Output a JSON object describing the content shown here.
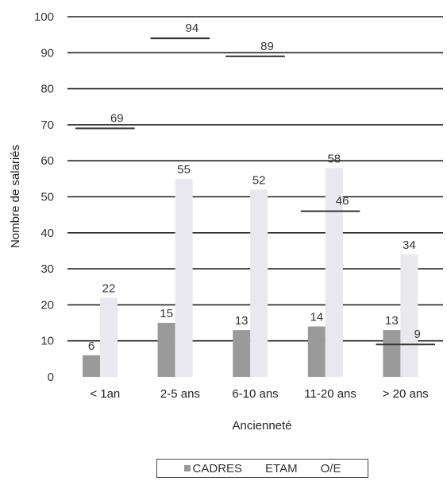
{
  "chart_data": {
    "type": "bar",
    "xlabel": "Ancienneté",
    "ylabel": "Nombre de salariés",
    "ylim": [
      0,
      100
    ],
    "yticks": [
      0,
      10,
      20,
      30,
      40,
      50,
      60,
      70,
      80,
      90,
      100
    ],
    "categories": [
      "< 1an",
      "2-5 ans",
      "6-10 ans",
      "11-20 ans",
      "> 20 ans"
    ],
    "grid": true,
    "legend_position": "bottom",
    "series": [
      {
        "name": "CADRES",
        "values": [
          6,
          15,
          13,
          14,
          13
        ],
        "color": "#9a9a9a"
      },
      {
        "name": "ETAM",
        "values": [
          22,
          55,
          52,
          58,
          34
        ],
        "color": "#e8e8ee"
      },
      {
        "name": "O/E",
        "values": [
          69,
          94,
          89,
          46,
          9
        ],
        "color": "#333333"
      }
    ]
  }
}
